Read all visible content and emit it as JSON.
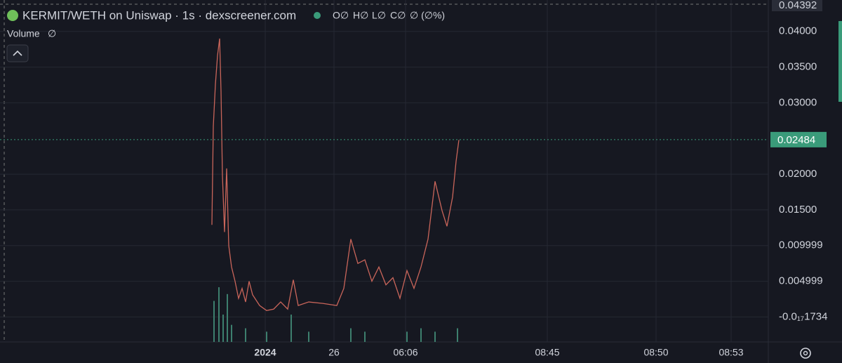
{
  "title": "KERMIT/WETH on Uniswap · 1s · dexscreener.com",
  "legend": {
    "open": "O∅",
    "high": "H∅",
    "low": "L∅",
    "close": "C∅",
    "change": "∅ (∅%)",
    "volume_value": "∅"
  },
  "chart_data": {
    "type": "line",
    "x": [
      30.2,
      30.4,
      30.7,
      31.0,
      31.3,
      31.5,
      31.7,
      32.0,
      32.3,
      32.6,
      33.0,
      33.5,
      34.0,
      34.5,
      35.0,
      35.5,
      36.0,
      37.0,
      38.0,
      39.0,
      40.0,
      41.0,
      41.8,
      42.5,
      44.0,
      46.0,
      48.0,
      49.0,
      50.0,
      51.0,
      52.0,
      53.0,
      54.0,
      55.0,
      56.0,
      57.0,
      58.0,
      59.0,
      60.0,
      61.0,
      62.0,
      63.0,
      63.7,
      64.5,
      65.0,
      65.4
    ],
    "series": [
      {
        "color": "#c9655a",
        "values": [
          0.0129,
          0.0267,
          0.0326,
          0.0366,
          0.039,
          0.0316,
          0.0198,
          0.0119,
          0.0208,
          0.01,
          0.007,
          0.005,
          0.0026,
          0.004,
          0.0021,
          0.005,
          0.0031,
          0.0016,
          0.0009,
          0.0011,
          0.0021,
          0.0011,
          0.0052,
          0.0016,
          0.0021,
          0.0019,
          0.0016,
          0.004,
          0.0109,
          0.0075,
          0.008,
          0.005,
          0.007,
          0.0045,
          0.0055,
          0.0026,
          0.0065,
          0.004,
          0.007,
          0.0109,
          0.019,
          0.0149,
          0.0127,
          0.0168,
          0.0218,
          0.0248
        ]
      },
      {
        "name": "Volume",
        "axis": "y2",
        "color": "#3d7f6e",
        "x": [
          30.5,
          31.2,
          31.8,
          32.4,
          33.0,
          35.0,
          38.0,
          41.5,
          44.0,
          50.0,
          52.0,
          58.0,
          60.0,
          62.0,
          65.2
        ],
        "values": [
          12,
          16,
          8,
          14,
          5,
          4,
          3,
          8,
          3,
          4,
          3,
          3,
          4,
          3,
          4
        ]
      }
    ],
    "xlim": [
      0,
      109.5
    ],
    "xticks": [
      {
        "value": 37.8,
        "label": "2024"
      },
      {
        "value": 47.6,
        "label": "26"
      },
      {
        "value": 57.8,
        "label": "06:06"
      },
      {
        "value": 78.0,
        "label": "08:45"
      },
      {
        "value": 93.5,
        "label": "08:50"
      },
      {
        "value": 104.2,
        "label": "08:53"
      }
    ],
    "ylim": [
      -0.0035,
      0.0444
    ],
    "yticks": [
      0.04392,
      {
        "value": 0.04,
        "label": "0.04000"
      },
      {
        "value": 0.035,
        "label": "0.03500"
      },
      {
        "value": 0.03,
        "label": "0.03000"
      },
      {
        "value": 0.02,
        "label": "0.02000"
      },
      {
        "value": 0.015,
        "label": "0.01500"
      },
      0.009999,
      0.004999,
      {
        "value": -1.734e-18,
        "label": "-0.0₁₇1734"
      }
    ],
    "last_price": 0.02484,
    "last_price_color": "#3a9b7a",
    "y2lim": [
      0,
      100
    ],
    "grid": true
  }
}
